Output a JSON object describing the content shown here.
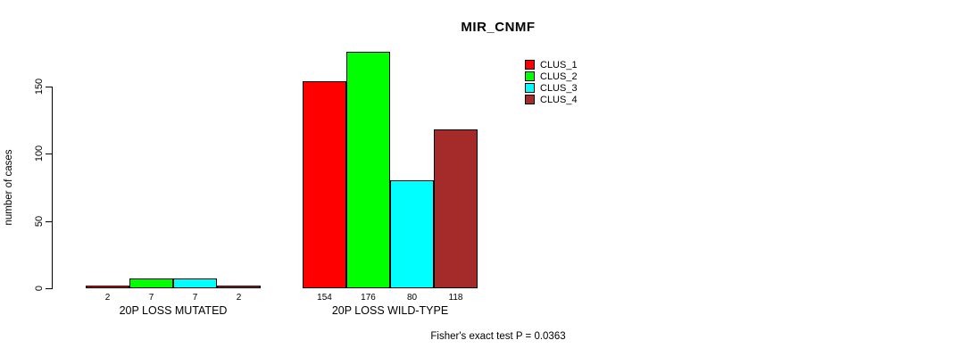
{
  "chart_data": {
    "type": "bar",
    "title": "MIR_CNMF",
    "xlabel": "",
    "ylabel": "number of cases",
    "categories": [
      "20P LOSS MUTATED",
      "20P LOSS WILD-TYPE"
    ],
    "series": [
      {
        "name": "CLUS_1",
        "color": "#FF0000",
        "values": [
          2,
          154
        ]
      },
      {
        "name": "CLUS_2",
        "color": "#00FF00",
        "values": [
          7,
          176
        ]
      },
      {
        "name": "CLUS_3",
        "color": "#00FFFF",
        "values": [
          7,
          80
        ]
      },
      {
        "name": "CLUS_4",
        "color": "#A52A2A",
        "values": [
          2,
          118
        ]
      }
    ],
    "bar_value_labels": [
      [
        "2",
        "7",
        "7",
        "2"
      ],
      [
        "154",
        "176",
        "80",
        "118"
      ]
    ],
    "yticks": [
      0,
      50,
      100,
      150
    ],
    "ylim": [
      0,
      176
    ],
    "grid": false,
    "legend_position": "top-right",
    "bar_border_color": "#000000",
    "annotation": "Fisher's exact test P = 0.0363"
  }
}
